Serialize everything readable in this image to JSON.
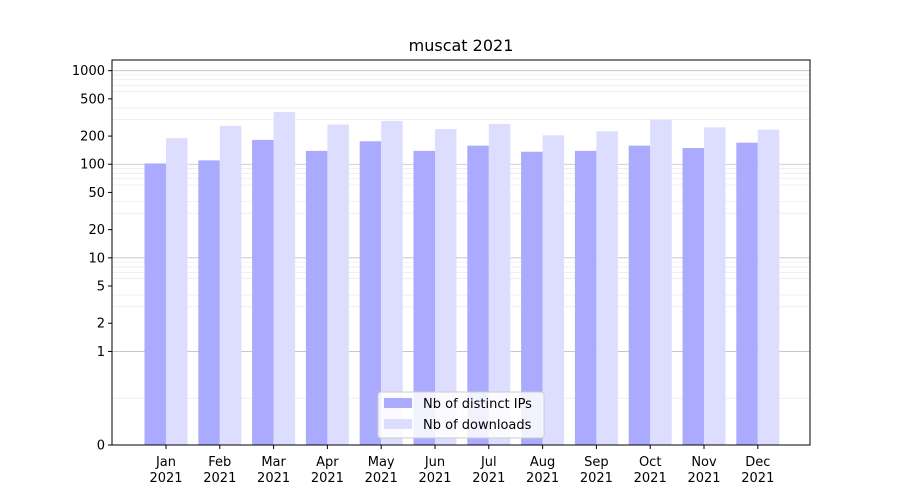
{
  "chart_data": {
    "type": "bar",
    "title": "muscat 2021",
    "xlabel": "",
    "ylabel": "",
    "y_scale": "symlog",
    "ylim": [
      0,
      1300
    ],
    "y_ticks": [
      {
        "value": 0,
        "label": "0"
      },
      {
        "value": 1,
        "label": "1"
      },
      {
        "value": 2,
        "label": "2"
      },
      {
        "value": 5,
        "label": "5"
      },
      {
        "value": 10,
        "label": "10"
      },
      {
        "value": 20,
        "label": "20"
      },
      {
        "value": 50,
        "label": "50"
      },
      {
        "value": 100,
        "label": "100"
      },
      {
        "value": 200,
        "label": "200"
      },
      {
        "value": 500,
        "label": "500"
      },
      {
        "value": 1000,
        "label": "1000"
      }
    ],
    "categories": [
      {
        "month": "Jan",
        "year": "2021"
      },
      {
        "month": "Feb",
        "year": "2021"
      },
      {
        "month": "Mar",
        "year": "2021"
      },
      {
        "month": "Apr",
        "year": "2021"
      },
      {
        "month": "May",
        "year": "2021"
      },
      {
        "month": "Jun",
        "year": "2021"
      },
      {
        "month": "Jul",
        "year": "2021"
      },
      {
        "month": "Aug",
        "year": "2021"
      },
      {
        "month": "Sep",
        "year": "2021"
      },
      {
        "month": "Oct",
        "year": "2021"
      },
      {
        "month": "Nov",
        "year": "2021"
      },
      {
        "month": "Dec",
        "year": "2021"
      }
    ],
    "series": [
      {
        "name": "Nb of distinct IPs",
        "color": "#aaaaff",
        "values": [
          102,
          110,
          182,
          139,
          176,
          139,
          158,
          136,
          139,
          158,
          149,
          170
        ]
      },
      {
        "name": "Nb of downloads",
        "color": "#ddddff",
        "values": [
          190,
          257,
          362,
          265,
          290,
          238,
          270,
          204,
          225,
          300,
          248,
          234
        ]
      }
    ],
    "grid": true,
    "legend_position": "bottom-center"
  }
}
